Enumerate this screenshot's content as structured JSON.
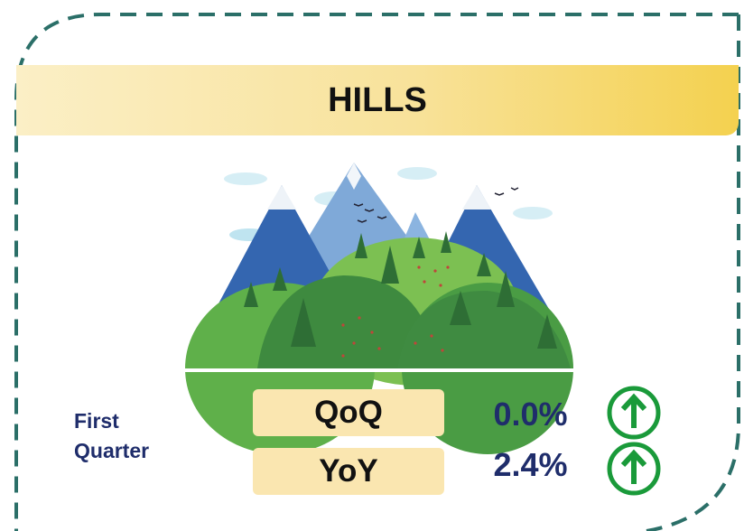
{
  "header": {
    "title": "HILLS"
  },
  "period": "First Quarter",
  "metrics": [
    {
      "label": "QoQ",
      "value": "0.0%"
    },
    {
      "label": "YoY",
      "value": "2.4%"
    }
  ]
}
